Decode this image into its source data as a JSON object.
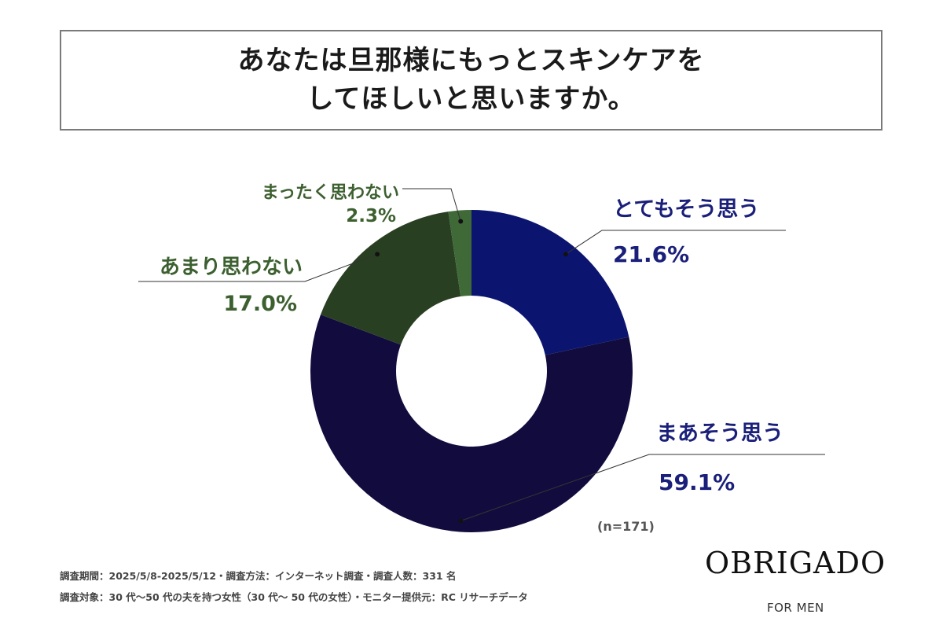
{
  "title": {
    "line1": "あなたは旦那様にもっとスキンケアを",
    "line2": "してほしいと思いますか。"
  },
  "chart_data": {
    "type": "pie",
    "donut": true,
    "slices": [
      {
        "label": "とても思う",
        "display_label": "とてもそう思う",
        "value": 21.6,
        "value_label": "21.6%",
        "color": "#0b1570"
      },
      {
        "label": "まあそう思う",
        "display_label": "まあそう思う",
        "value": 59.1,
        "value_label": "59.1%",
        "color": "#120c3e"
      },
      {
        "label": "あまり思わない",
        "display_label": "あまり思わない",
        "value": 17.0,
        "value_label": "17.0%",
        "color": "#293f22"
      },
      {
        "label": "まったく思わない",
        "display_label": "まったく思わない",
        "value": 2.3,
        "value_label": "2.3%",
        "color": "#3f6a38"
      }
    ],
    "label_colors": {
      "blue": "#1a1f7a",
      "green": "#3d6030"
    }
  },
  "sample_note": "(n=171)",
  "footer": {
    "line1": "調査期間：2025/5/8-2025/5/12・調査方法：インターネット調査・調査人数：331 名",
    "line2": "調査対象：30 代〜50 代の夫を持つ女性（30 代〜 50 代の女性）・モニター提供元：RC リサーチデータ"
  },
  "brand": {
    "name": "OBRIGADO",
    "sub": "FOR MEN"
  }
}
